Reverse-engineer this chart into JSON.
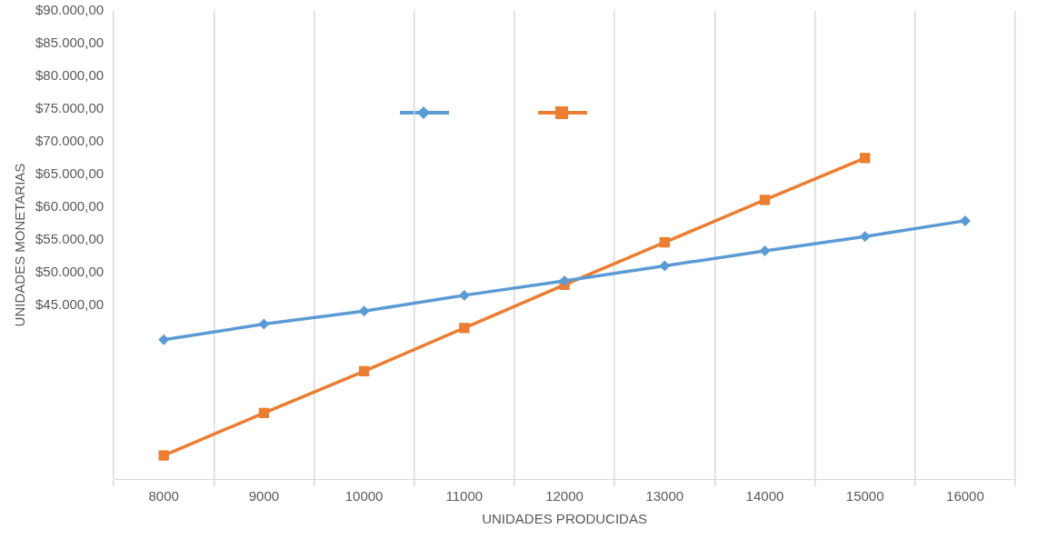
{
  "chart_data": {
    "type": "line",
    "xlabel": "UNIDADES PRODUCIDAS",
    "ylabel": "UNIDADES MONETARIAS",
    "categories": [
      "8000",
      "9000",
      "10000",
      "11000",
      "12000",
      "13000",
      "14000",
      "15000",
      "16000"
    ],
    "series": [
      {
        "color": "#5b9bd5",
        "marker": "diamond",
        "values": [
          39700,
          42100,
          44100,
          46500,
          48700,
          51000,
          53300,
          55500,
          57900
        ]
      },
      {
        "color": "#ed7d31",
        "marker": "square",
        "values": [
          22000,
          28500,
          34900,
          41500,
          48100,
          54600,
          61100,
          67500,
          null
        ]
      }
    ],
    "ylim": [
      18400,
      90000
    ],
    "yticks": [
      {
        "value": 45000,
        "label": "$45.000,00"
      },
      {
        "value": 50000,
        "label": "$50.000,00"
      },
      {
        "value": 55000,
        "label": "$55.000,00"
      },
      {
        "value": 60000,
        "label": "$60.000,00"
      },
      {
        "value": 65000,
        "label": "$65.000,00"
      },
      {
        "value": 70000,
        "label": "$70.000,00"
      },
      {
        "value": 75000,
        "label": "$75.000,00"
      },
      {
        "value": 80000,
        "label": "$80.000,00"
      },
      {
        "value": 85000,
        "label": "$85.000,00"
      },
      {
        "value": 90000,
        "label": "$90.000,00"
      }
    ],
    "grid": "x",
    "line_style": "solid"
  }
}
